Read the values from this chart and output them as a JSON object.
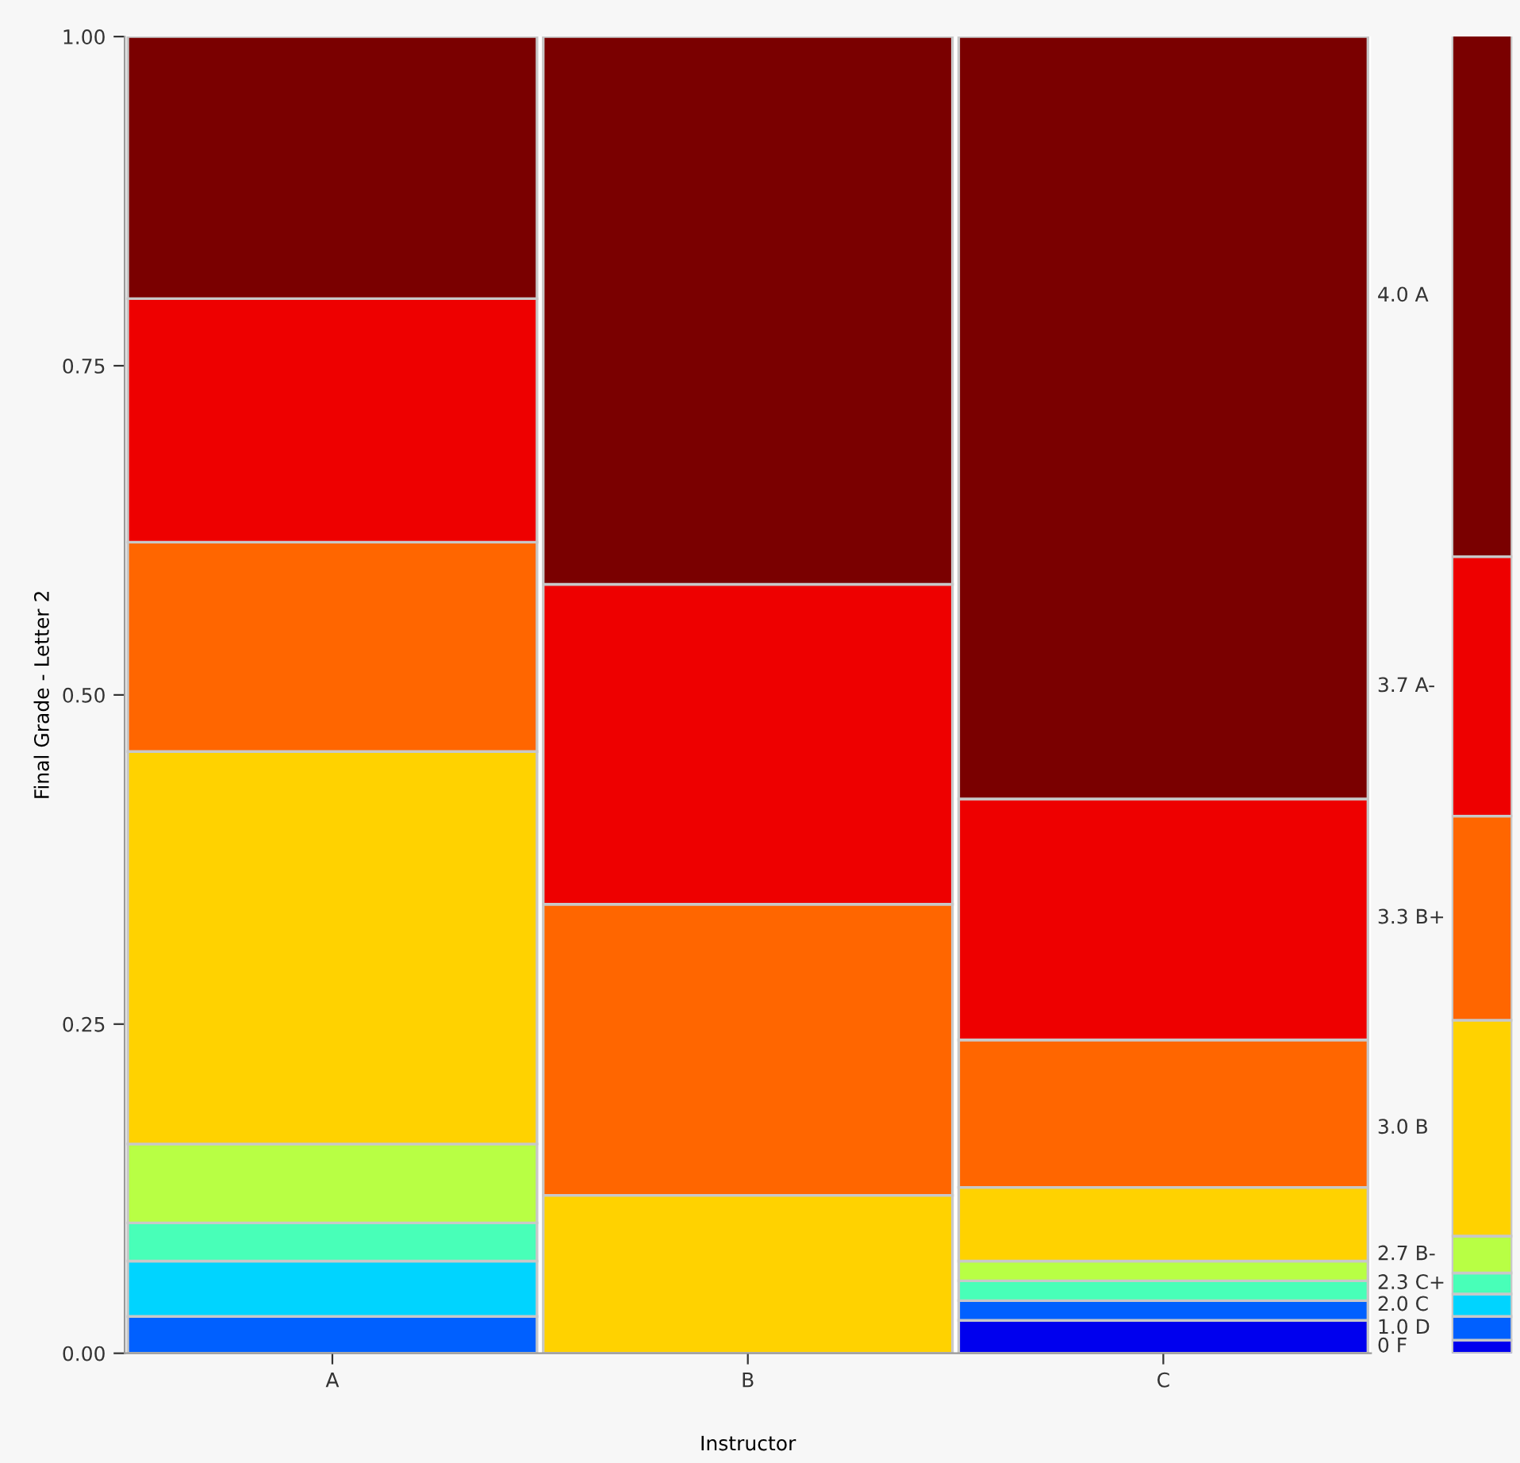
{
  "chart_data": [
    {
      "type": "bar",
      "stacked": true,
      "xlabel": "Instructor",
      "ylabel": "Final Grade - Letter 2",
      "categories": [
        "A",
        "B",
        "C"
      ],
      "ylim": [
        0,
        1
      ],
      "yticks": [
        {
          "value": 0,
          "label": "0.00"
        },
        {
          "value": 0.25,
          "label": "0.25"
        },
        {
          "value": 0.5,
          "label": "0.50"
        },
        {
          "value": 0.75,
          "label": "0.75"
        },
        {
          "value": 1,
          "label": "1.00"
        }
      ],
      "grid": false,
      "series": [
        {
          "color": "#0000ee",
          "values": [
            0,
            0,
            0.025
          ]
        },
        {
          "color": "#0060ff",
          "values": [
            0.028,
            0,
            0.015
          ]
        },
        {
          "color": "#00d4ff",
          "values": [
            0.042,
            0,
            0
          ]
        },
        {
          "color": "#48ffb8",
          "values": [
            0.029,
            0,
            0.015
          ]
        },
        {
          "color": "#b8ff44",
          "values": [
            0.06,
            0,
            0.015
          ]
        },
        {
          "color": "#ffd200",
          "values": [
            0.298,
            0.12,
            0.056
          ]
        },
        {
          "color": "#ff6600",
          "values": [
            0.159,
            0.221,
            0.112
          ]
        },
        {
          "color": "#ee0000",
          "values": [
            0.185,
            0.243,
            0.183
          ]
        },
        {
          "color": "#7a0000",
          "values": [
            0.199,
            0.416,
            0.579
          ]
        }
      ]
    },
    {
      "type": "bar",
      "stacked": true,
      "categories": [
        null
      ],
      "ylim": [
        0,
        1
      ],
      "tick_labels": false,
      "grid": false,
      "series": [
        {
          "name": "0 F",
          "color": "#0000ee",
          "values": [
            0.01
          ]
        },
        {
          "name": "1.0 D",
          "color": "#0060ff",
          "values": [
            0.018
          ]
        },
        {
          "name": "2.0 C",
          "color": "#00d4ff",
          "values": [
            0.017
          ]
        },
        {
          "name": "2.3 C+",
          "color": "#48ffb8",
          "values": [
            0.016
          ]
        },
        {
          "name": "2.7 B-",
          "color": "#b8ff44",
          "values": [
            0.028
          ]
        },
        {
          "name": "3.0 B",
          "color": "#ffd200",
          "values": [
            0.164
          ]
        },
        {
          "name": "3.3 B+",
          "color": "#ff6600",
          "values": [
            0.155
          ]
        },
        {
          "name": "3.7 A-",
          "color": "#ee0000",
          "values": [
            0.197
          ]
        },
        {
          "name": "4.0 A",
          "color": "#7a0000",
          "values": [
            0.396
          ]
        }
      ]
    }
  ]
}
